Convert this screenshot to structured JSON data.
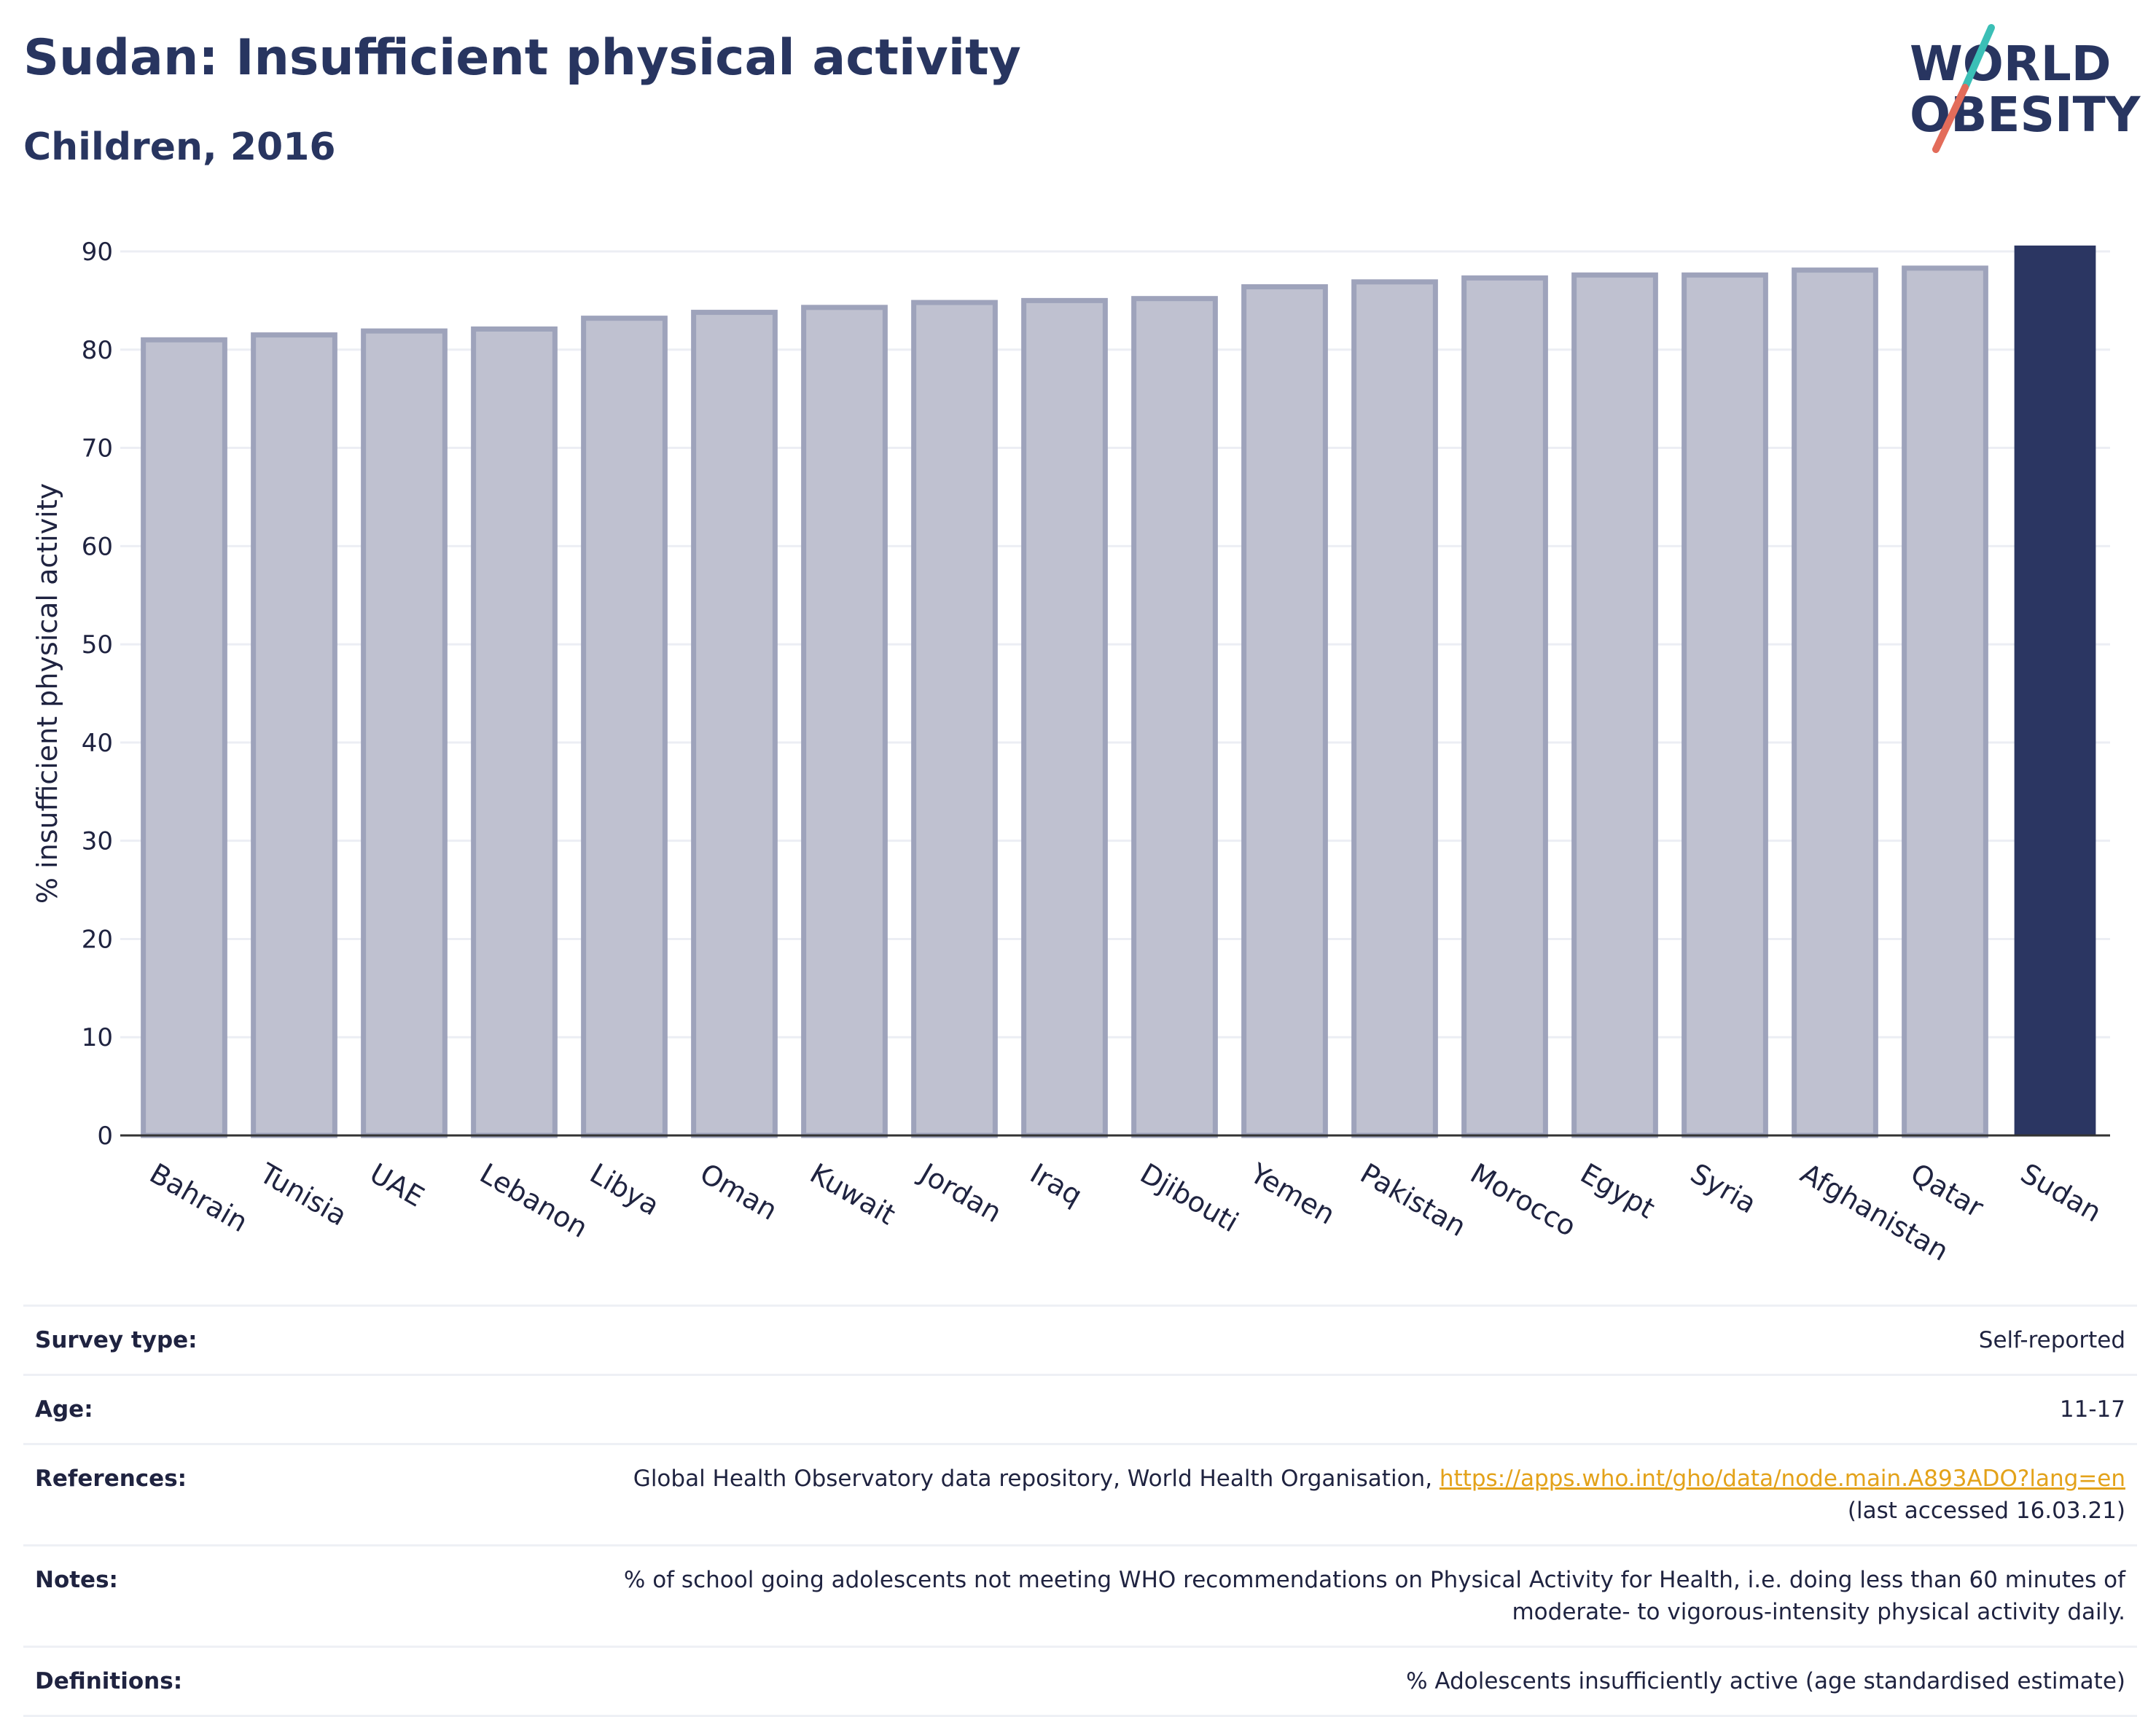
{
  "header": {
    "title": "Sudan: Insufficient physical activity",
    "subtitle": "Children, 2016"
  },
  "logo": {
    "line1": "WORLD",
    "line2": "OBESITY"
  },
  "chart_data": {
    "type": "bar",
    "ylabel": "% insufficient physical activity",
    "xlabel": "",
    "ylim": [
      0,
      90
    ],
    "yticks": [
      0,
      10,
      20,
      30,
      40,
      50,
      60,
      70,
      80,
      90
    ],
    "grid": true,
    "categories": [
      "Bahrain",
      "Tunisia",
      "UAE",
      "Lebanon",
      "Libya",
      "Oman",
      "Kuwait",
      "Jordan",
      "Iraq",
      "Djibouti",
      "Yemen",
      "Pakistan",
      "Morocco",
      "Egypt",
      "Syria",
      "Afghanistan",
      "Qatar",
      "Sudan"
    ],
    "values": [
      81.0,
      81.5,
      81.9,
      82.1,
      83.2,
      83.8,
      84.3,
      84.8,
      85.0,
      85.2,
      86.4,
      86.9,
      87.3,
      87.6,
      87.6,
      88.1,
      88.3,
      90.6
    ],
    "highlight": "Sudan",
    "colors": {
      "bar": "#bfc1d0",
      "bar_edge": "#9ea3bb",
      "highlight": "#2b3662",
      "grid": "#eceef4",
      "axis": "#333333"
    }
  },
  "info": [
    {
      "key": "Survey type:",
      "value": "Self-reported"
    },
    {
      "key": "Age:",
      "value": "11-17"
    },
    {
      "key": "References:",
      "value": "Global Health Observatory data repository, World Health Organisation,",
      "link": "https://apps.who.int/gho/data/node.main.A893ADO?lang=en",
      "value2": "(last accessed 16.03.21)"
    },
    {
      "key": "Notes:",
      "value": "% of school going adolescents not meeting WHO recommendations on Physical Activity for Health, i.e. doing less than 60 minutes of",
      "value2": "moderate- to vigorous-intensity physical activity daily."
    },
    {
      "key": "Definitions:",
      "value": "% Adolescents insufficiently active (age standardised estimate)"
    }
  ]
}
